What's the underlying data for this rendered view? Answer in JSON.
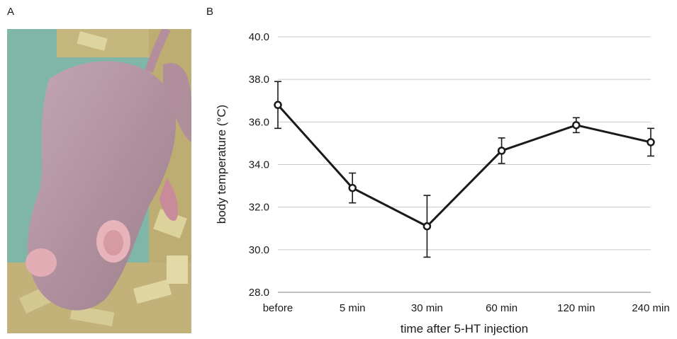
{
  "panels": {
    "a": "A",
    "b": "B"
  },
  "photo": {
    "subject": "hairless mouse on wood-shaving bedding",
    "bg_color": "#7fb6a8",
    "skin_color": "#b99aa5"
  },
  "chart_data": {
    "type": "line",
    "title": "",
    "xlabel": "time after 5-HT injection",
    "ylabel": "body temperature (°C)",
    "categories": [
      "before",
      "5 min",
      "30 min",
      "60 min",
      "120 min",
      "240 min"
    ],
    "series": [
      {
        "values": [
          36.8,
          32.9,
          31.1,
          34.65,
          35.85,
          35.05
        ],
        "errors": [
          1.1,
          0.7,
          1.45,
          0.6,
          0.35,
          0.65
        ]
      }
    ],
    "ylim": [
      28.0,
      40.0
    ],
    "yticks": [
      "28.0",
      "30.0",
      "32.0",
      "34.0",
      "36.0",
      "38.0",
      "40.0"
    ],
    "grid": true,
    "line_color": "#1a1a1a"
  }
}
